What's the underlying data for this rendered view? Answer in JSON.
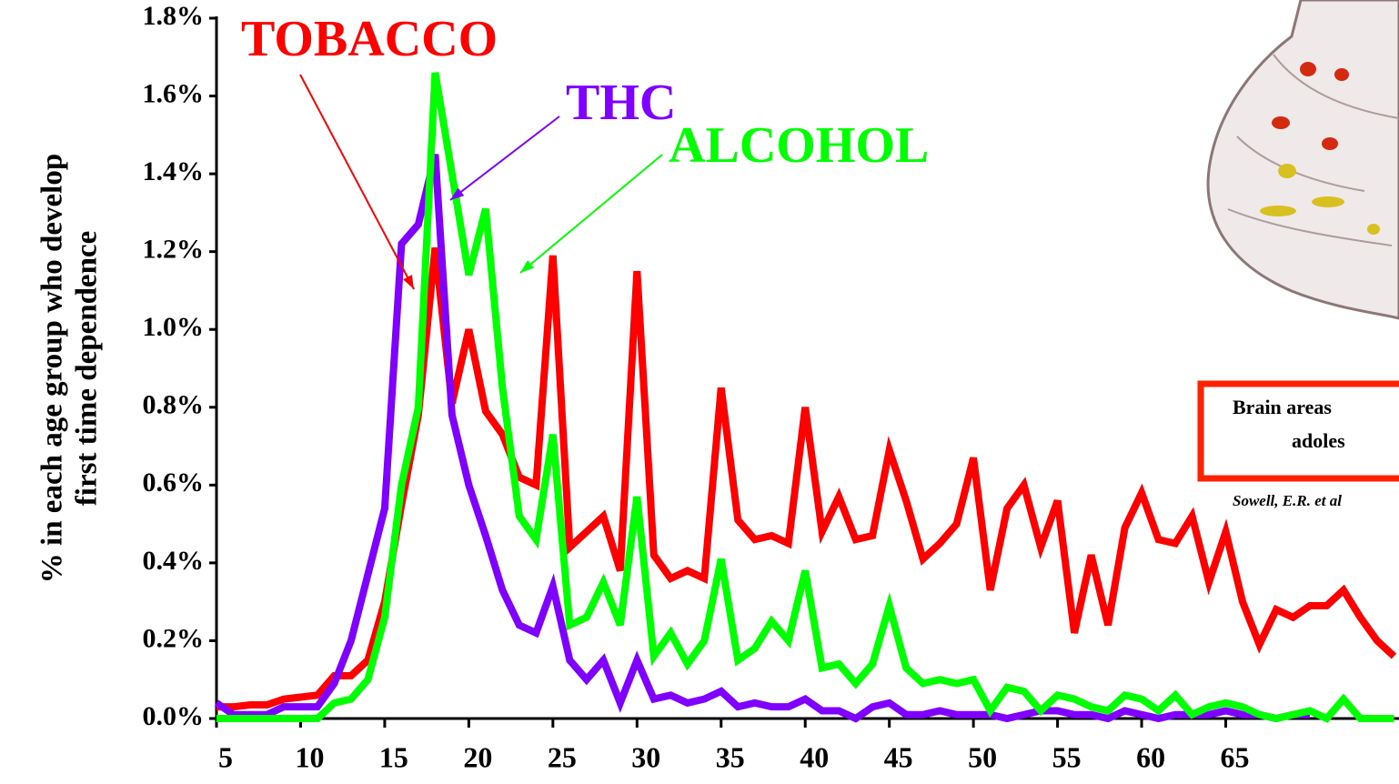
{
  "chart_data": {
    "type": "line",
    "ylabel": [
      "% in each age group who develop",
      "first  time dependence"
    ],
    "x": [
      5,
      6,
      7,
      8,
      9,
      10,
      11,
      12,
      13,
      14,
      15,
      16,
      17,
      18,
      19,
      20,
      21,
      22,
      23,
      24,
      25,
      26,
      27,
      28,
      29,
      30,
      31,
      32,
      33,
      34,
      35,
      36,
      37,
      38,
      39,
      40,
      41,
      42,
      43,
      44,
      45,
      46,
      47,
      48,
      49,
      50,
      51,
      52,
      53,
      54,
      55,
      56,
      57,
      58,
      59,
      60,
      61,
      62,
      63,
      64,
      65,
      66,
      67,
      68,
      69,
      70,
      71,
      72,
      73,
      74,
      75
    ],
    "series": [
      {
        "name": "TOBACCO",
        "color": "#ff0000",
        "values": [
          0.03,
          0.03,
          0.035,
          0.035,
          0.05,
          0.055,
          0.06,
          0.11,
          0.11,
          0.15,
          0.3,
          0.55,
          0.78,
          1.21,
          0.81,
          1.0,
          0.79,
          0.73,
          0.62,
          0.6,
          1.19,
          0.44,
          0.48,
          0.52,
          0.38,
          1.15,
          0.42,
          0.36,
          0.38,
          0.36,
          0.85,
          0.51,
          0.46,
          0.47,
          0.45,
          0.8,
          0.48,
          0.57,
          0.46,
          0.47,
          0.69,
          0.56,
          0.41,
          0.45,
          0.5,
          0.67,
          0.33,
          0.54,
          0.6,
          0.44,
          0.56,
          0.22,
          0.42,
          0.24,
          0.49,
          0.58,
          0.46,
          0.45,
          0.52,
          0.35,
          0.48,
          0.3,
          0.19,
          0.28,
          0.26,
          0.29,
          0.29,
          0.33,
          0.26,
          0.2,
          0.16
        ]
      },
      {
        "name": "THC",
        "color": "#7f00ff",
        "values": [
          0.04,
          0.01,
          0.01,
          0.01,
          0.03,
          0.03,
          0.03,
          0.09,
          0.2,
          0.37,
          0.54,
          1.22,
          1.27,
          1.45,
          0.78,
          0.6,
          0.47,
          0.33,
          0.24,
          0.22,
          0.34,
          0.15,
          0.1,
          0.15,
          0.04,
          0.15,
          0.05,
          0.06,
          0.04,
          0.05,
          0.07,
          0.03,
          0.04,
          0.03,
          0.03,
          0.05,
          0.02,
          0.02,
          0.0,
          0.03,
          0.04,
          0.01,
          0.01,
          0.02,
          0.01,
          0.01,
          0.01,
          0.0,
          0.01,
          0.02,
          0.02,
          0.01,
          0.01,
          0.0,
          0.02,
          0.01,
          0.0,
          0.01,
          0.01,
          0.01,
          0.02,
          0.01,
          0.01,
          0.0,
          0.01,
          0.01,
          null,
          null,
          null,
          null,
          null
        ]
      },
      {
        "name": "ALCOHOL",
        "color": "#00ff00",
        "values": [
          0.0,
          0.0,
          0.0,
          0.0,
          0.0,
          0.0,
          0.0,
          0.04,
          0.05,
          0.1,
          0.26,
          0.6,
          0.8,
          1.66,
          1.4,
          1.14,
          1.31,
          0.85,
          0.52,
          0.46,
          0.73,
          0.24,
          0.26,
          0.35,
          0.24,
          0.57,
          0.16,
          0.22,
          0.14,
          0.2,
          0.41,
          0.15,
          0.18,
          0.25,
          0.2,
          0.38,
          0.13,
          0.14,
          0.09,
          0.14,
          0.29,
          0.13,
          0.09,
          0.1,
          0.09,
          0.1,
          0.02,
          0.08,
          0.07,
          0.02,
          0.06,
          0.05,
          0.03,
          0.02,
          0.06,
          0.05,
          0.02,
          0.06,
          0.01,
          0.03,
          0.04,
          0.03,
          0.01,
          0.0,
          0.01,
          0.02,
          0.0,
          0.05,
          0.0,
          0.0,
          0.0
        ]
      }
    ],
    "xlim": [
      5,
      75.3
    ],
    "ylim": [
      0,
      1.8
    ],
    "xticks": [
      5,
      10,
      15,
      20,
      25,
      30,
      35,
      40,
      45,
      50,
      55,
      60,
      65
    ],
    "yticks": [
      {
        "value": 0,
        "label": "0.0%"
      },
      {
        "value": 0.2,
        "label": "0.2%"
      },
      {
        "value": 0.4,
        "label": "0.4%"
      },
      {
        "value": 0.6,
        "label": "0.6%"
      },
      {
        "value": 0.8,
        "label": "0.8%"
      },
      {
        "value": 1.0,
        "label": "1.0%"
      },
      {
        "value": 1.2,
        "label": "1.2%"
      },
      {
        "value": 1.4,
        "label": "1.4%"
      },
      {
        "value": 1.6,
        "label": "1.6%"
      },
      {
        "value": 1.8,
        "label": "1.8%"
      }
    ],
    "inset": {
      "box_lines": [
        "Brain areas",
        "adoles"
      ],
      "citation": "Sowell, E.R. et al"
    }
  }
}
